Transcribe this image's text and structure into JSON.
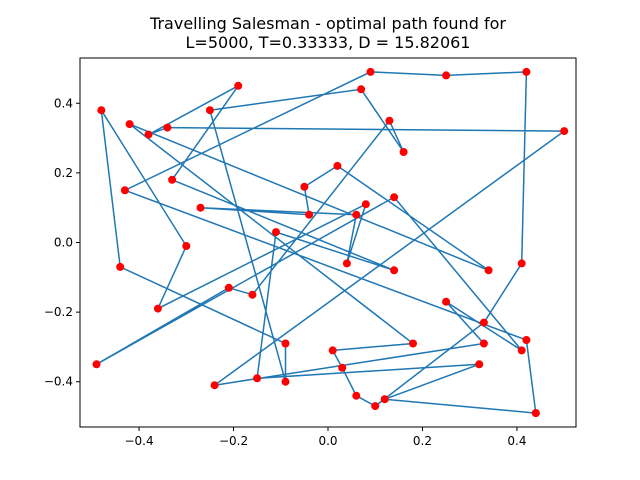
{
  "colors": {
    "path": "#1f77b4",
    "points": "#ff0000",
    "axes": "#000000"
  },
  "chart_data": {
    "type": "scatter",
    "title_line1": "Travelling Salesman - optimal path found for",
    "title_line2": "L=5000, T=0.33333, D = 15.82061",
    "xlabel": "",
    "ylabel": "",
    "xlim": [
      -0.525,
      0.525
    ],
    "ylim": [
      -0.53,
      0.53
    ],
    "grid": false,
    "xticks": [
      -0.4,
      -0.2,
      0.0,
      0.2,
      0.4
    ],
    "xtick_labels": [
      "−0.4",
      "−0.2",
      "0.0",
      "0.2",
      "0.4"
    ],
    "yticks": [
      -0.4,
      -0.2,
      0.0,
      0.2,
      0.4
    ],
    "ytick_labels": [
      "−0.4",
      "−0.2",
      "0.0",
      "0.2",
      "0.4"
    ],
    "series": [
      {
        "type": "line+markers",
        "points": [
          [
            0.44,
            -0.49
          ],
          [
            0.12,
            -0.45
          ],
          [
            0.32,
            -0.35
          ],
          [
            -0.15,
            -0.39
          ],
          [
            -0.11,
            0.03
          ],
          [
            0.14,
            -0.08
          ],
          [
            -0.33,
            0.18
          ],
          [
            -0.19,
            0.45
          ],
          [
            -0.38,
            0.31
          ],
          [
            -0.34,
            0.33
          ],
          [
            0.5,
            0.32
          ],
          [
            -0.24,
            -0.41
          ],
          [
            0.33,
            -0.29
          ],
          [
            0.25,
            -0.17
          ],
          [
            0.41,
            -0.31
          ],
          [
            0.14,
            0.13
          ],
          [
            -0.49,
            -0.35
          ],
          [
            -0.21,
            -0.13
          ],
          [
            -0.16,
            -0.15
          ],
          [
            0.13,
            0.35
          ],
          [
            0.16,
            0.26
          ],
          [
            0.07,
            0.44
          ],
          [
            -0.25,
            0.38
          ],
          [
            -0.09,
            -0.4
          ],
          [
            -0.09,
            -0.29
          ],
          [
            -0.44,
            -0.07
          ],
          [
            -0.48,
            0.38
          ],
          [
            -0.3,
            -0.01
          ],
          [
            -0.36,
            -0.19
          ],
          [
            0.08,
            0.11
          ],
          [
            0.04,
            -0.06
          ],
          [
            0.06,
            0.08
          ],
          [
            -0.27,
            0.1
          ],
          [
            -0.04,
            0.08
          ],
          [
            -0.05,
            0.16
          ],
          [
            0.02,
            0.22
          ],
          [
            0.34,
            -0.08
          ],
          [
            -0.42,
            0.34
          ],
          [
            0.18,
            -0.29
          ],
          [
            0.01,
            -0.31
          ],
          [
            0.03,
            -0.36
          ],
          [
            0.06,
            -0.44
          ],
          [
            0.1,
            -0.47
          ],
          [
            0.33,
            -0.23
          ],
          [
            0.41,
            -0.06
          ],
          [
            0.42,
            0.49
          ],
          [
            0.25,
            0.48
          ],
          [
            0.09,
            0.49
          ],
          [
            -0.43,
            0.15
          ],
          [
            0.42,
            -0.28
          ],
          [
            0.44,
            -0.49
          ]
        ]
      }
    ]
  }
}
